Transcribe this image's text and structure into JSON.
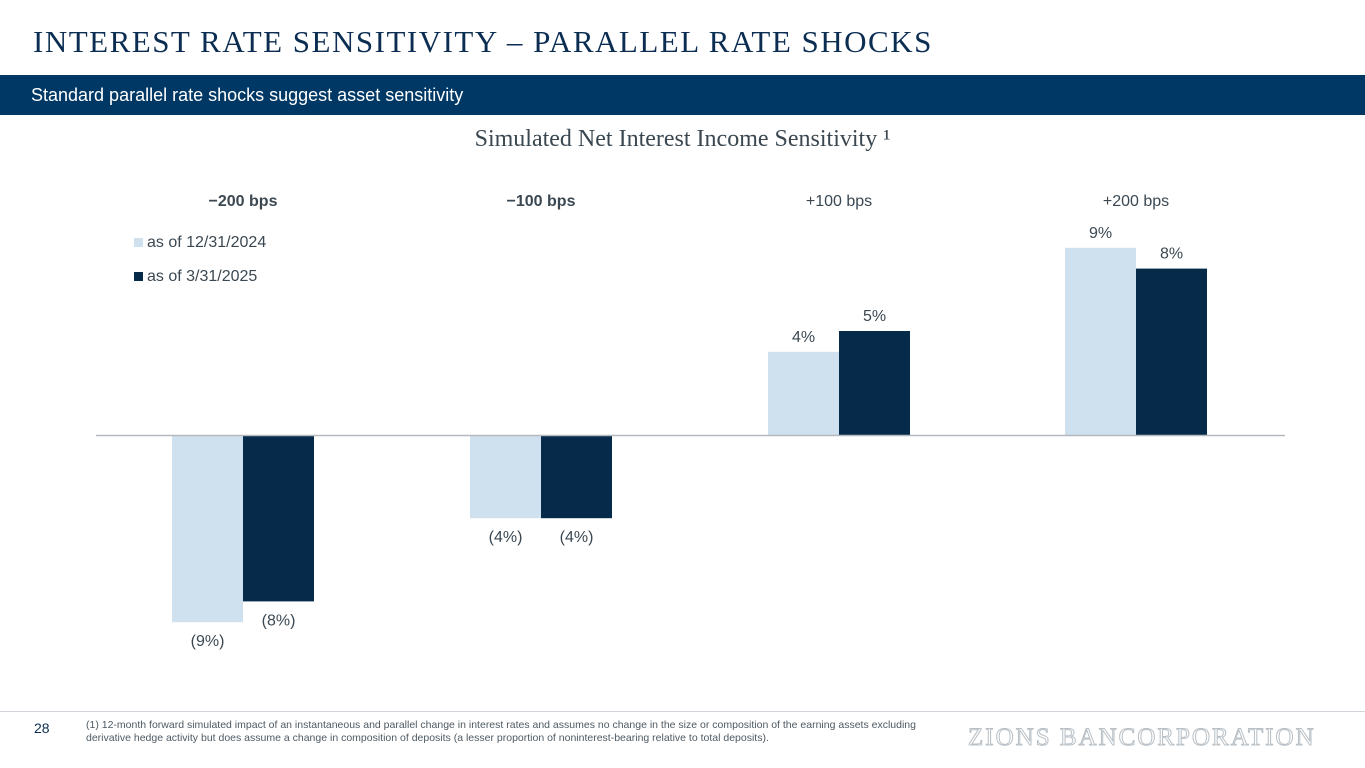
{
  "header": {
    "title": "INTEREST RATE SENSITIVITY – PARALLEL RATE SHOCKS",
    "subtitle": "Standard parallel rate shocks suggest asset sensitivity"
  },
  "colors": {
    "brand_navy": "#003865",
    "series_light": "#cfe0ee",
    "series_dark": "#062a4a"
  },
  "chart_data": {
    "type": "bar",
    "title": "Simulated Net Interest Income Sensitivity ¹",
    "categories": [
      "−200 bps",
      "−100 bps",
      "+100 bps",
      "+200 bps"
    ],
    "category_bold": [
      true,
      true,
      false,
      false
    ],
    "series": [
      {
        "name": "as of 12/31/2024",
        "color": "#cfe0ee",
        "values": [
          -9,
          -4,
          4,
          9
        ],
        "labels": [
          "(9%)",
          "(4%)",
          "4%",
          "9%"
        ]
      },
      {
        "name": "as of 3/31/2025",
        "color": "#062a4a",
        "values": [
          -8,
          -4,
          5,
          8
        ],
        "labels": [
          "(8%)",
          "(4%)",
          "5%",
          "8%"
        ]
      }
    ],
    "ylim": [
      -10,
      10
    ],
    "xlabel": "",
    "ylabel": "",
    "legend": "top-left",
    "grid": false
  },
  "footer": {
    "page_number": "28",
    "footnote": "(1) 12-month forward simulated impact of an instantaneous and parallel change in interest rates and assumes no change in the size or composition of the earning assets excluding derivative hedge activity but does assume a change in composition of deposits (a lesser proportion of noninterest-bearing relative to total deposits).",
    "logo_text": "ZIONS BANCORPORATION"
  }
}
